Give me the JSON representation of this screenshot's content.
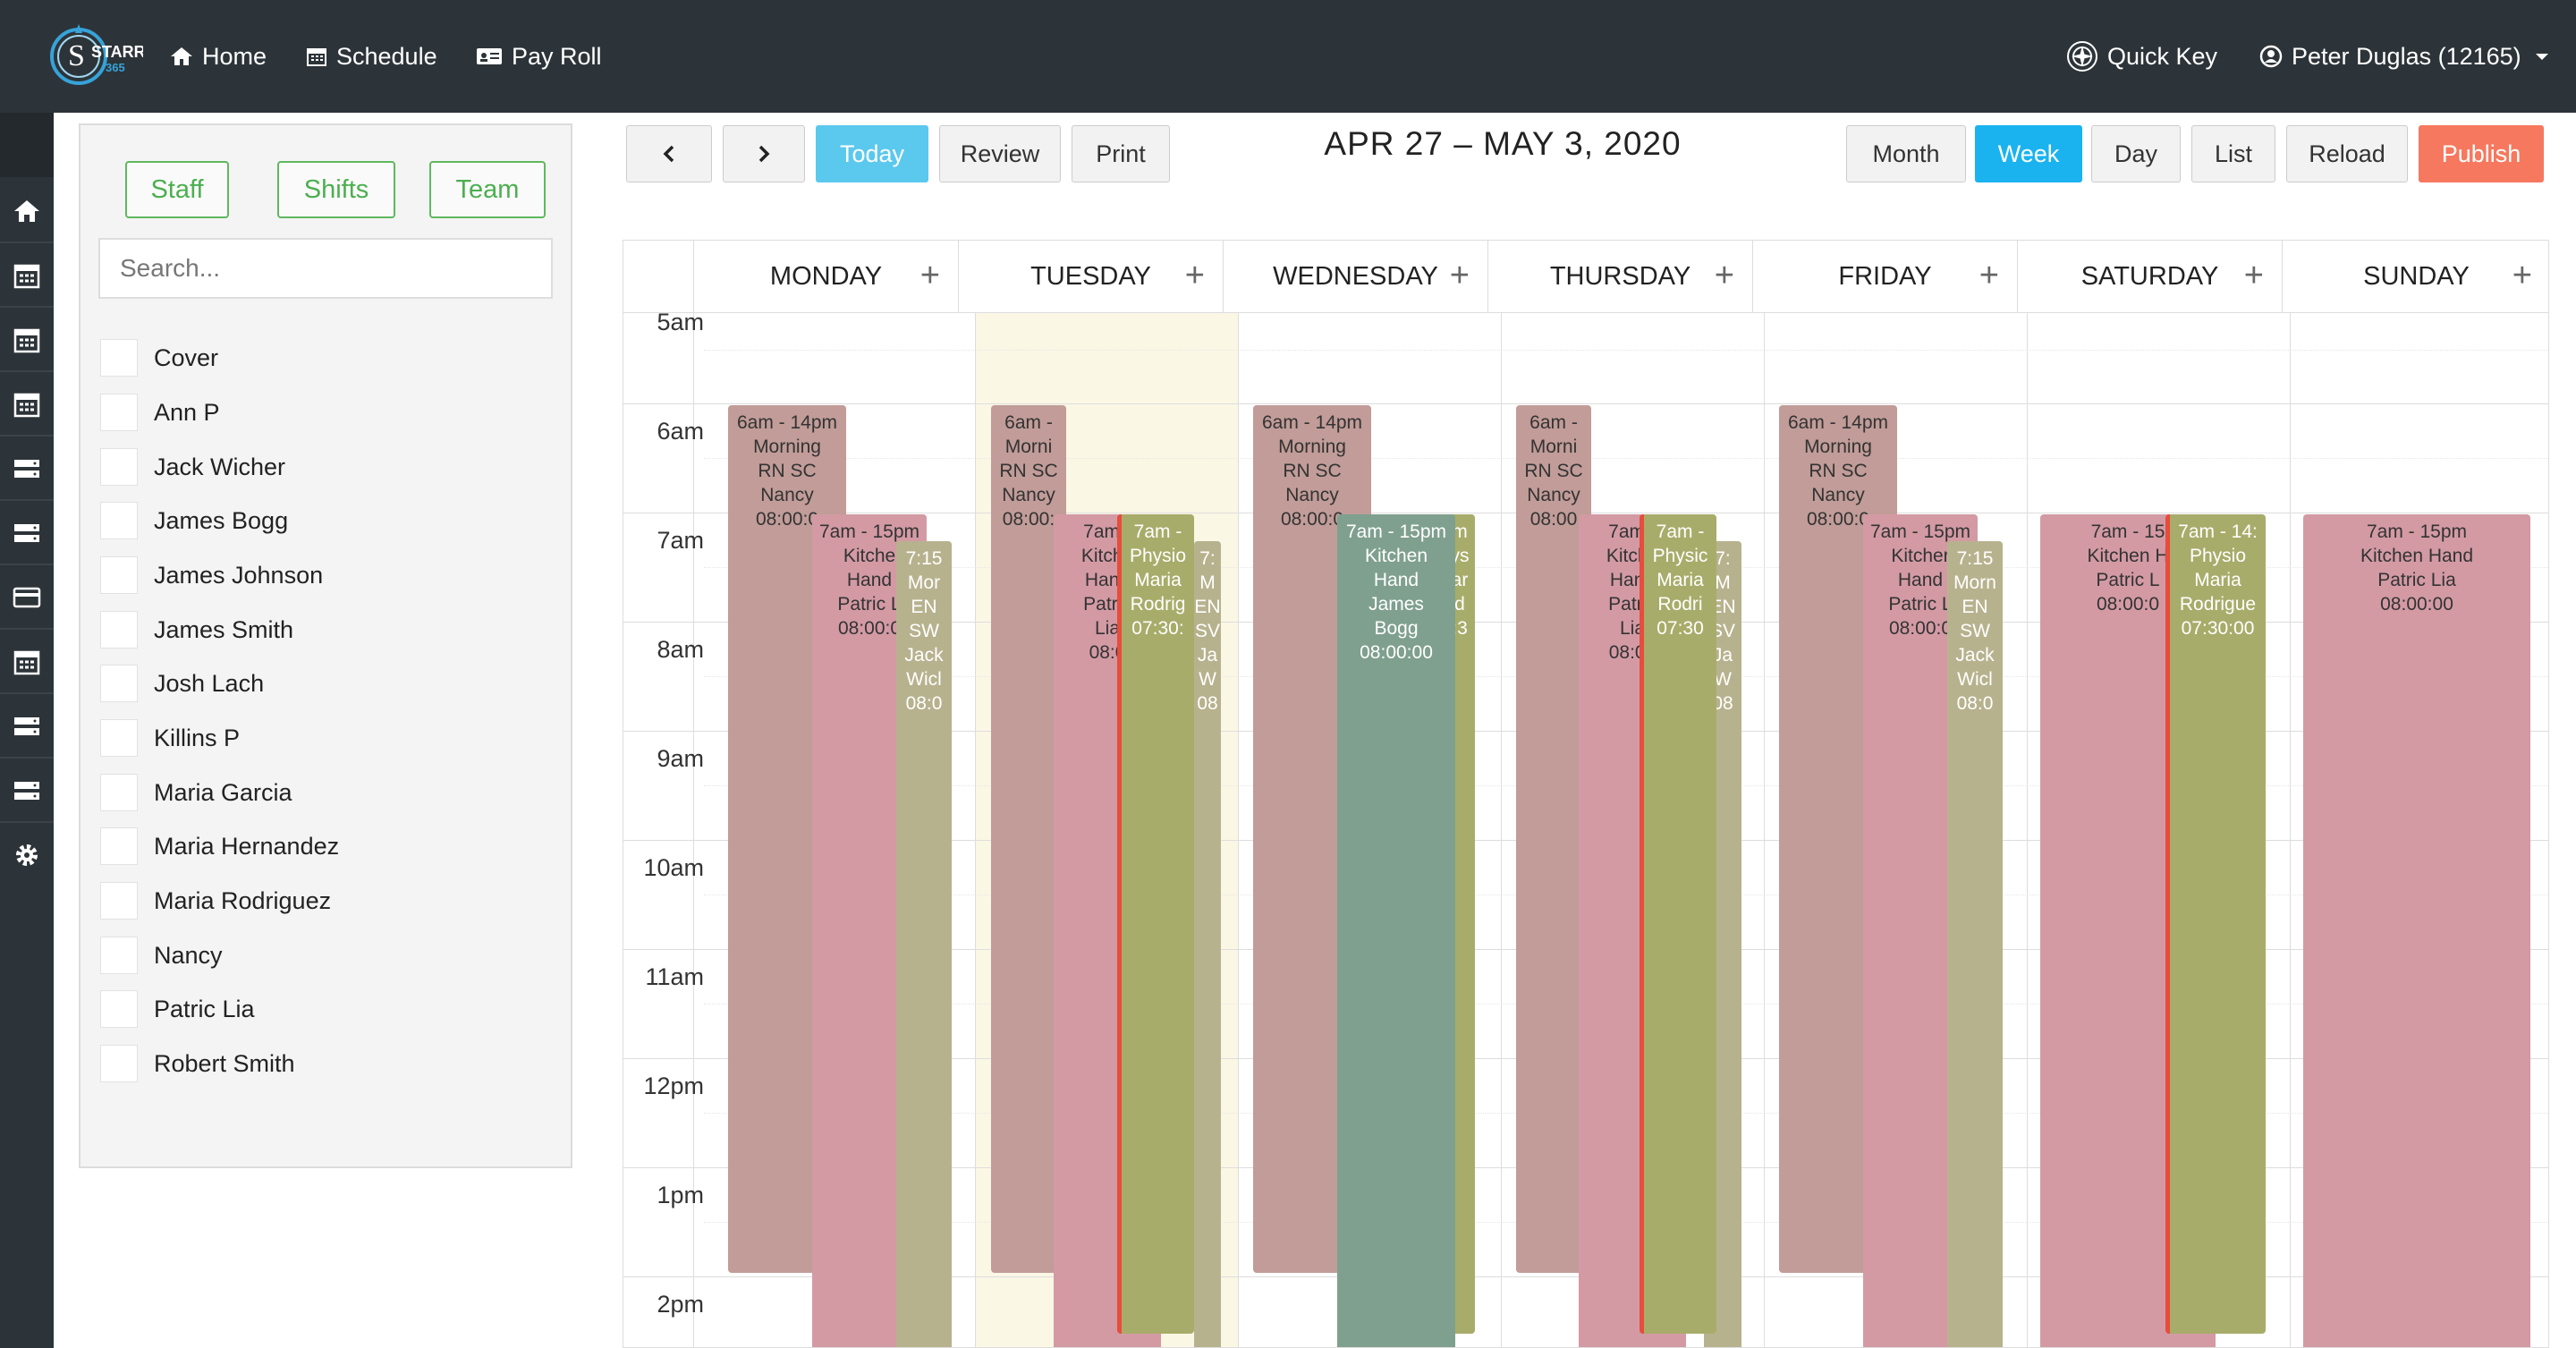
{
  "brand": {
    "name": "STARR",
    "sub": "365"
  },
  "nav": {
    "home": "Home",
    "schedule": "Schedule",
    "payroll": "Pay Roll",
    "quick_key": "Quick Key",
    "user": "Peter Duglas (12165)"
  },
  "panel": {
    "tabs": [
      "Staff",
      "Shifts",
      "Team"
    ],
    "search_placeholder": "Search...",
    "staff": [
      "Cover",
      "Ann P",
      "Jack Wicher",
      "James Bogg",
      "James Johnson",
      "James Smith",
      "Josh Lach",
      "Killins P",
      "Maria Garcia",
      "Maria Hernandez",
      "Maria Rodriguez",
      "Nancy",
      "Patric Lia",
      "Robert Smith"
    ]
  },
  "toolbar": {
    "today": "Today",
    "review": "Review",
    "print": "Print",
    "month": "Month",
    "week": "Week",
    "day": "Day",
    "list": "List",
    "reload": "Reload",
    "publish": "Publish",
    "active_view": "Week"
  },
  "calendar": {
    "range": "APR 27 – MAY 3, 2020",
    "days": [
      "MONDAY",
      "TUESDAY",
      "WEDNESDAY",
      "THURSDAY",
      "FRIDAY",
      "SATURDAY",
      "SUNDAY"
    ],
    "times": [
      "5am",
      "6am",
      "7am",
      "8am",
      "9am",
      "10am",
      "11am",
      "12pm",
      "1pm",
      "2pm"
    ],
    "today_index": 1
  },
  "shifts": {
    "mon_nurse": [
      "6am - 14pm",
      "Morning",
      "RN SC",
      "Nancy",
      "08:00:0"
    ],
    "mon_kitchen": [
      "7am - 15pm",
      "Kitche",
      "Hand",
      "Patric L",
      "08:00:0"
    ],
    "mon_sw": [
      "7:15",
      "Mor",
      "EN",
      "SW",
      "Jack",
      "Wicl",
      "08:0"
    ],
    "tue_nurse": [
      "6am - ",
      "Morni",
      "RN SC",
      "Nancy",
      "08:00:"
    ],
    "tue_kitchen": [
      "7am -",
      "Kitche",
      "Hand",
      "Patric",
      "Lia",
      "08:0"
    ],
    "tue_physio": [
      "7am - ",
      "Physio",
      "Maria",
      "Rodrig",
      "07:30:"
    ],
    "tue_sw": [
      "7:",
      "M",
      "EN",
      "SV",
      "Ja",
      "W",
      "08"
    ],
    "wed_nurse": [
      "6am - 14pm",
      "Morning",
      "RN SC",
      "Nancy",
      "08:00:0"
    ],
    "wed_kitchen": [
      "7am - 15pm",
      "Kitchen",
      "Hand",
      "James",
      "Bogg",
      "08:00:00"
    ],
    "wed_physio": [
      "m",
      "ys",
      "ar",
      "d",
      ":3"
    ],
    "thu_nurse": [
      "6am - ",
      "Morni",
      "RN SC",
      "Nancy",
      "08:00"
    ],
    "thu_kitchen": [
      "7am -",
      "Kitche",
      "Hand",
      "Patric",
      "Lia",
      "08:00"
    ],
    "thu_physio": [
      "7am - ",
      "Physic",
      "Maria",
      "Rodri",
      "07:30"
    ],
    "thu_sw": [
      "7:",
      "M",
      "EN",
      "SV",
      "Ja",
      "W",
      "08"
    ],
    "fri_nurse": [
      "6am - 14pm",
      "Morning",
      "RN SC",
      "Nancy",
      "08:00:0"
    ],
    "fri_kitchen": [
      "7am - 15pm",
      "Kitcher",
      "Hand",
      "Patric L",
      "08:00:0"
    ],
    "fri_sw": [
      "7:15",
      "Morn",
      "EN",
      "SW",
      "Jack",
      "Wicl",
      "08:0"
    ],
    "sat_kitchen": [
      "7am - 15",
      "Kitchen H",
      "Patric L",
      "08:00:0"
    ],
    "sat_physio": [
      "7am - 14:",
      "Physio",
      "Maria",
      "Rodrigue",
      "07:30:00"
    ],
    "sun_kitchen": [
      "7am - 15pm",
      "Kitchen Hand",
      "Patric Lia",
      "08:00:00"
    ]
  },
  "colors": {
    "topbar": "#2d3439",
    "today_btn": "#5bc8ee",
    "week_btn": "#1ab3f0",
    "publish_btn": "#f6785e",
    "nurse": "#c19c98",
    "kitchen": "#d39aa4",
    "sw": "#b7b28e",
    "physio": "#a8ac6a",
    "kitchen_bogg": "#7fa08e",
    "today_col": "#fbf7e5",
    "accent_red": "#e74c3c"
  }
}
